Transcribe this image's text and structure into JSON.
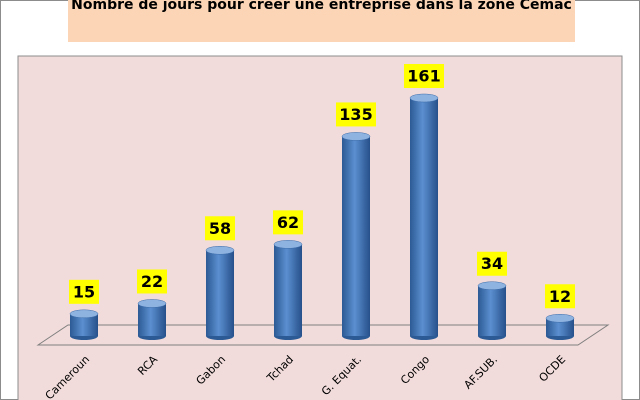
{
  "chart_data": {
    "type": "bar",
    "title": "Nombre de jours pour créer une entreprise dans la zone Cemac",
    "categories": [
      "Cameroun",
      "RCA",
      "Gabon",
      "Tchad",
      "G. Equat.",
      "Congo",
      "AF.SUB.",
      "OCDE"
    ],
    "values": [
      15,
      22,
      58,
      62,
      135,
      161,
      34,
      12
    ],
    "color": "#4f81bd"
  }
}
